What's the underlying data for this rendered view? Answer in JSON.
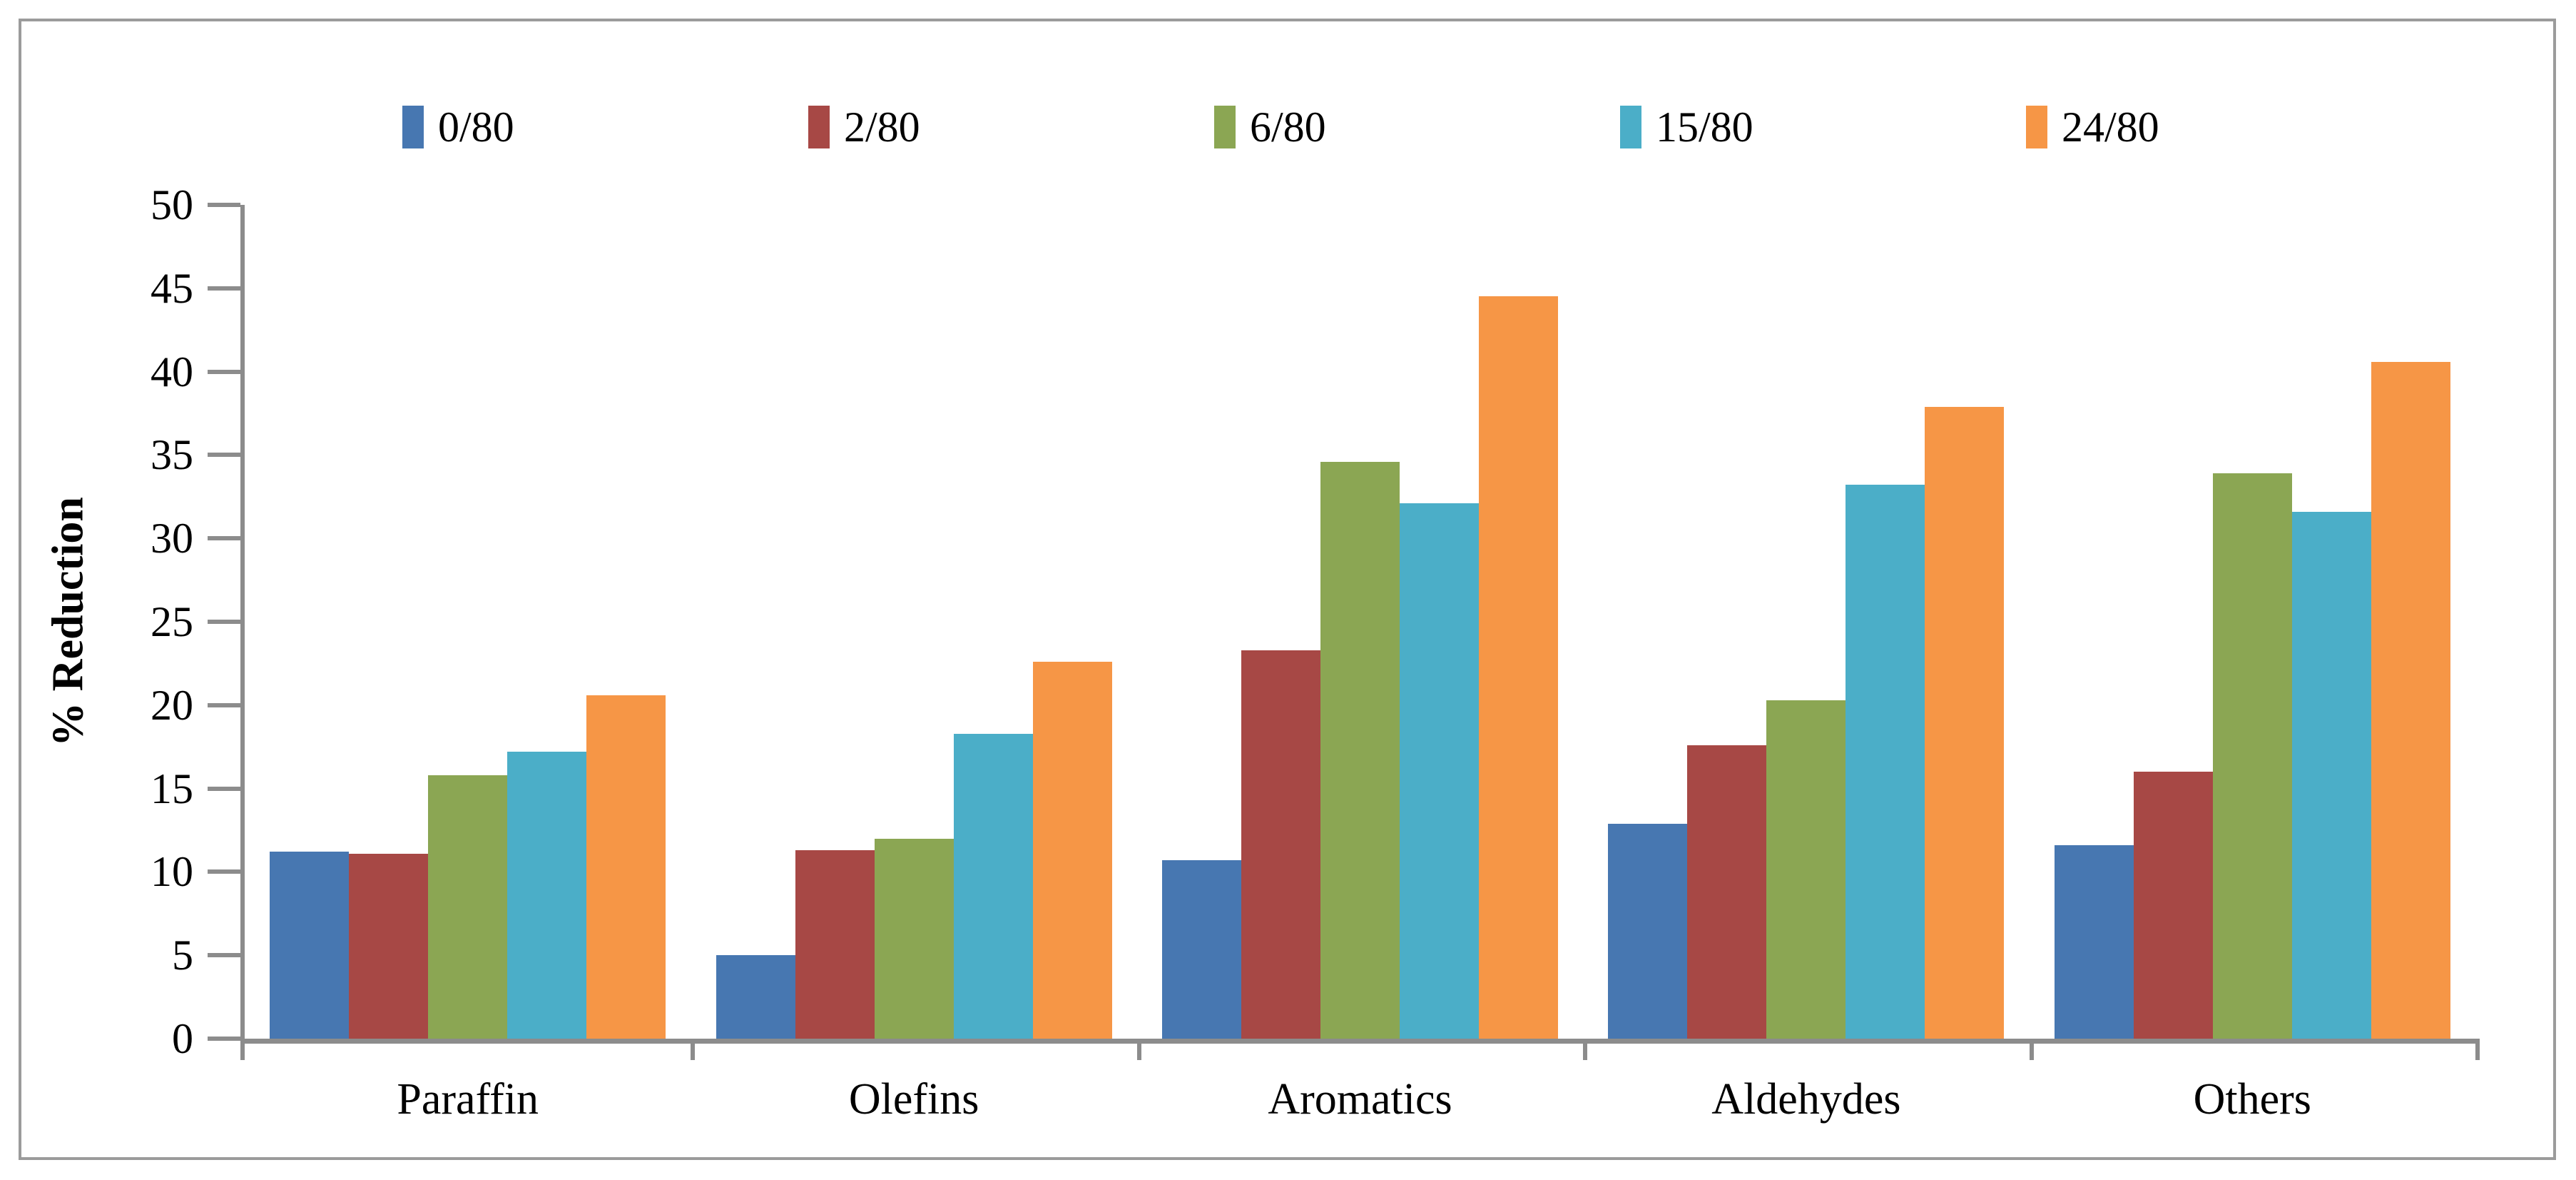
{
  "figure": {
    "background_color": "#ffffff",
    "border_color": "#9b9b9b",
    "axis_color": "#8c8c8c"
  },
  "chart_data": {
    "type": "bar",
    "title": "",
    "ylabel": "% Reduction",
    "xlabel": "",
    "ylim": [
      0,
      50
    ],
    "ytick_step": 5,
    "yticks": [
      0,
      5,
      10,
      15,
      20,
      25,
      30,
      35,
      40,
      45,
      50
    ],
    "grid": false,
    "legend_position": "top",
    "categories": [
      "Paraffin",
      "Olefins",
      "Aromatics",
      "Aldehydes",
      "Others"
    ],
    "series": [
      {
        "name": "0/80",
        "color": "#4777b1",
        "values": [
          11.2,
          5.0,
          10.7,
          12.9,
          11.6
        ]
      },
      {
        "name": "2/80",
        "color": "#a74845",
        "values": [
          11.1,
          11.3,
          23.3,
          17.6,
          16.0
        ]
      },
      {
        "name": "6/80",
        "color": "#8ba653",
        "values": [
          15.8,
          12.0,
          34.6,
          20.3,
          33.9
        ]
      },
      {
        "name": "15/80",
        "color": "#4baec8",
        "values": [
          17.2,
          18.3,
          32.1,
          33.2,
          31.6
        ]
      },
      {
        "name": "24/80",
        "color": "#f69646",
        "values": [
          20.6,
          22.6,
          44.5,
          37.9,
          40.6
        ]
      }
    ]
  },
  "layout_note": "clustered column chart, no gridlines, gray axes, serif labels"
}
